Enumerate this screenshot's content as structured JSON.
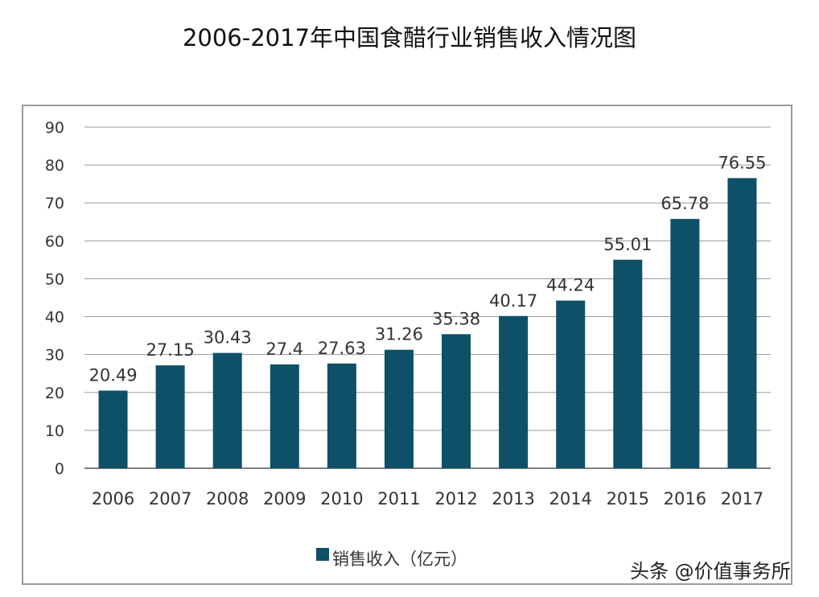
{
  "chart_data": {
    "type": "bar",
    "title": "2006-2017年中国食醋行业销售收入情况图",
    "categories": [
      "2006",
      "2007",
      "2008",
      "2009",
      "2010",
      "2011",
      "2012",
      "2013",
      "2014",
      "2015",
      "2016",
      "2017"
    ],
    "series": [
      {
        "name": "销售收入（亿元）",
        "values": [
          20.49,
          27.15,
          30.43,
          27.4,
          27.63,
          31.26,
          35.38,
          40.17,
          44.24,
          55.01,
          65.78,
          76.55
        ],
        "labels": [
          "20.49",
          "27.15",
          "30.43",
          "27.4",
          "27.63",
          "31.26",
          "35.38",
          "40.17",
          "44.24",
          "55.01",
          "65.78",
          "76.55"
        ]
      }
    ],
    "ylim": [
      0,
      90
    ],
    "yticks": [
      0,
      10,
      20,
      30,
      40,
      50,
      60,
      70,
      80,
      90
    ],
    "grid": true,
    "legend": "bottom",
    "colors": {
      "bar": "#0d5068",
      "grid": "#9a9a9a"
    }
  },
  "watermark": "头条 @价值事务所"
}
